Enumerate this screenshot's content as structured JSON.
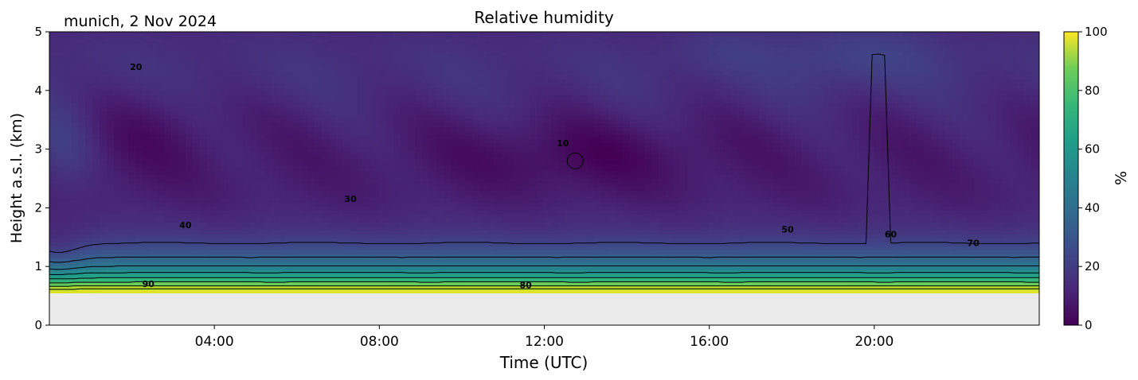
{
  "chart_data": {
    "type": "heatmap",
    "title": "Relative humidity",
    "site_label": "munich, 2 Nov 2024",
    "xlabel": "Time (UTC)",
    "ylabel": "Height a.s.l. (km)",
    "colorbar_label": "%",
    "colormap": "viridis",
    "x_ticks": [
      "04:00",
      "08:00",
      "12:00",
      "16:00",
      "20:00"
    ],
    "x_tick_hours": [
      4,
      8,
      12,
      16,
      20
    ],
    "xlim_hours": [
      0,
      24
    ],
    "ylim": [
      0,
      5
    ],
    "y_ticks": [
      "0",
      "1",
      "2",
      "3",
      "4",
      "5"
    ],
    "y_tick_values": [
      0,
      1,
      2,
      3,
      4,
      5
    ],
    "colorbar_ticks": [
      "0",
      "20",
      "40",
      "60",
      "80",
      "100"
    ],
    "colorbar_tick_values": [
      0,
      20,
      40,
      60,
      80,
      100
    ],
    "clim": [
      0,
      100
    ],
    "missing_below_km": 0.55,
    "missing_color": "#ebebeb",
    "contour_levels": [
      10,
      20,
      30,
      40,
      50,
      60,
      70,
      80,
      90
    ],
    "contour_color": "#000000",
    "contour_labels": [
      {
        "text": "20",
        "hour": 2.1,
        "km": 4.35
      },
      {
        "text": "10",
        "hour": 12.45,
        "km": 3.05
      },
      {
        "text": "30",
        "hour": 7.3,
        "km": 2.1
      },
      {
        "text": "40",
        "hour": 3.3,
        "km": 1.65
      },
      {
        "text": "50",
        "hour": 17.9,
        "km": 1.58
      },
      {
        "text": "60",
        "hour": 20.4,
        "km": 1.5
      },
      {
        "text": "70",
        "hour": 22.4,
        "km": 1.35
      },
      {
        "text": "80",
        "hour": 11.55,
        "km": 0.63
      },
      {
        "text": "90",
        "hour": 2.4,
        "km": 0.65
      }
    ]
  }
}
